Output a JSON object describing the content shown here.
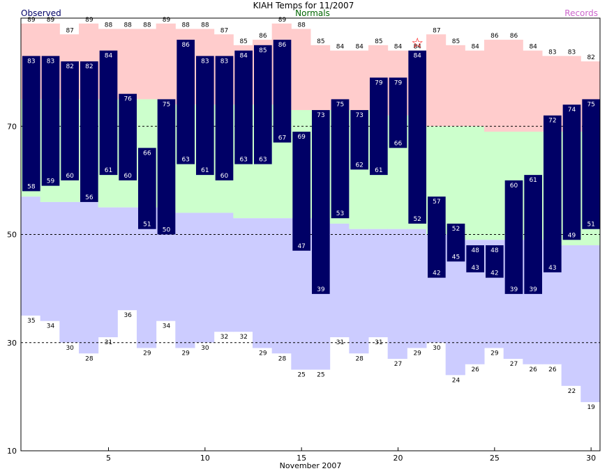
{
  "chart_data": {
    "type": "bar",
    "title": "KIAH Temps for 11/2007",
    "xlabel": "November 2007",
    "ylabel": "",
    "legend": {
      "observed": "Observed",
      "normals": "Normals",
      "records": "Records"
    },
    "xlim": [
      0.5,
      30.5
    ],
    "ylim": [
      10,
      90
    ],
    "x_ticks": [
      5,
      10,
      15,
      20,
      25,
      30
    ],
    "y_ticks": [
      10,
      30,
      50,
      70
    ],
    "grid": "dashed horizontal at 30, 50, 70",
    "colors": {
      "observed": "#000066",
      "normal_band": "#ccffcc",
      "record_high_band": "#ffcccc",
      "record_low_band": "#ccccff",
      "observed_legend": "#000066",
      "normals_legend": "#006600",
      "records_legend": "#cc66cc",
      "marker": "#ff0000"
    },
    "days": [
      1,
      2,
      3,
      4,
      5,
      6,
      7,
      8,
      9,
      10,
      11,
      12,
      13,
      14,
      15,
      16,
      17,
      18,
      19,
      20,
      21,
      22,
      23,
      24,
      25,
      26,
      27,
      28,
      29,
      30
    ],
    "observed_high": [
      83,
      83,
      82,
      82,
      84,
      76,
      66,
      75,
      86,
      83,
      83,
      84,
      85,
      86,
      69,
      73,
      75,
      73,
      79,
      79,
      84,
      57,
      52,
      48,
      48,
      60,
      61,
      72,
      74,
      75
    ],
    "observed_low": [
      58,
      59,
      60,
      56,
      61,
      60,
      51,
      50,
      63,
      61,
      60,
      63,
      63,
      67,
      47,
      39,
      53,
      62,
      61,
      66,
      52,
      42,
      45,
      43,
      42,
      39,
      39,
      43,
      49,
      51
    ],
    "record_high": [
      89,
      89,
      87,
      89,
      88,
      88,
      88,
      89,
      88,
      88,
      87,
      85,
      86,
      89,
      88,
      85,
      84,
      84,
      85,
      84,
      84,
      87,
      85,
      84,
      86,
      86,
      84,
      83,
      83,
      82
    ],
    "record_low": [
      35,
      34,
      30,
      28,
      31,
      36,
      29,
      34,
      29,
      30,
      32,
      32,
      29,
      28,
      25,
      25,
      31,
      28,
      31,
      27,
      29,
      30,
      24,
      26,
      29,
      27,
      26,
      26,
      22,
      19
    ],
    "normal_high": [
      75,
      75,
      75,
      75,
      75,
      75,
      75,
      75,
      74,
      74,
      74,
      74,
      74,
      74,
      73,
      73,
      73,
      73,
      73,
      72,
      72,
      70,
      70,
      70,
      69,
      69,
      69,
      69,
      69,
      69
    ],
    "normal_low": [
      57,
      56,
      56,
      56,
      55,
      55,
      55,
      55,
      54,
      54,
      54,
      53,
      53,
      53,
      53,
      53,
      52,
      51,
      51,
      51,
      51,
      50,
      50,
      49,
      49,
      49,
      49,
      49,
      48,
      48
    ],
    "record_marker": {
      "day": 21,
      "symbol": "☆"
    }
  }
}
